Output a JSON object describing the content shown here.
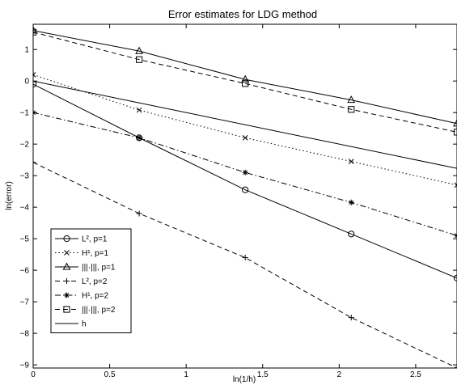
{
  "chart_data": {
    "type": "line",
    "title": "Error estimates for LDG method",
    "xlabel": "ln(1/h)",
    "ylabel": "ln(error)",
    "xlim": [
      0,
      2.77
    ],
    "ylim": [
      -9.1,
      1.8
    ],
    "xticks": [
      0,
      0.5,
      1,
      1.5,
      2,
      2.5
    ],
    "xtick_labels": [
      "0",
      "0.5",
      "1",
      "1.5",
      "2",
      "2.5"
    ],
    "yticks": [
      1,
      0,
      -1,
      -2,
      -3,
      -4,
      -5,
      -6,
      -7,
      -8,
      -9
    ],
    "ytick_labels": [
      "1",
      "0",
      "−1",
      "−2",
      "−3",
      "−4",
      "−5",
      "−6",
      "−7",
      "−8",
      "−9"
    ],
    "grid": false,
    "legend_position": "lower-left",
    "series": [
      {
        "name": "L², p=1",
        "marker": "circle",
        "dash": "solid",
        "x": [
          0,
          0.693,
          1.386,
          2.079,
          2.77
        ],
        "y": [
          -0.1,
          -1.8,
          -3.45,
          -4.85,
          -6.25
        ]
      },
      {
        "name": "H¹, p=1",
        "marker": "x",
        "dash": "dotted",
        "x": [
          0,
          0.693,
          1.386,
          2.079,
          2.77
        ],
        "y": [
          0.2,
          -0.92,
          -1.8,
          -2.55,
          -3.3
        ]
      },
      {
        "name": "|||·|||, p=1",
        "marker": "triangle",
        "dash": "solid",
        "x": [
          0,
          0.693,
          1.386,
          2.079,
          2.77
        ],
        "y": [
          1.6,
          0.95,
          0.05,
          -0.6,
          -1.35
        ]
      },
      {
        "name": "L², p=2",
        "marker": "plus",
        "dash": "dashed",
        "x": [
          0,
          0.693,
          1.386,
          2.079,
          2.77
        ],
        "y": [
          -2.58,
          -4.2,
          -5.6,
          -7.5,
          -9.1
        ]
      },
      {
        "name": "H¹, p=2",
        "marker": "star",
        "dash": "dashdot",
        "x": [
          0,
          0.693,
          1.386,
          2.079,
          2.77
        ],
        "y": [
          -1.0,
          -1.8,
          -2.9,
          -3.85,
          -4.9
        ]
      },
      {
        "name": "|||·|||, p=2",
        "marker": "square",
        "dash": "dashed",
        "x": [
          0,
          0.693,
          1.386,
          2.079,
          2.77
        ],
        "y": [
          1.55,
          0.68,
          -0.08,
          -0.9,
          -1.62
        ]
      },
      {
        "name": "h",
        "marker": "none",
        "dash": "solid",
        "x": [
          0,
          2.77
        ],
        "y": [
          0,
          -2.77
        ]
      }
    ]
  }
}
